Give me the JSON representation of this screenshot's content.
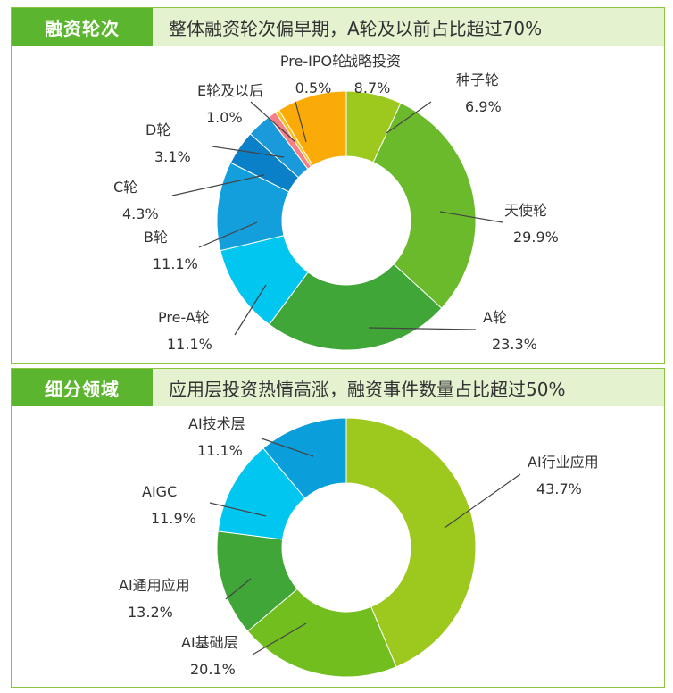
{
  "charts": [
    {
      "tag": "融资轮次",
      "headline": "整体融资轮次偏早期，A轮及以前占比超过70%",
      "chart_data": {
        "type": "pie",
        "title": "",
        "labels": [
          "种子轮",
          "天使轮",
          "A轮",
          "Pre-A轮",
          "B轮",
          "C轮",
          "D轮",
          "E轮及以后",
          "Pre-IPO轮",
          "战略投资"
        ],
        "values": [
          6.9,
          29.9,
          23.3,
          11.1,
          11.1,
          4.3,
          3.1,
          1.0,
          0.5,
          8.7
        ],
        "value_labels": [
          "6.9%",
          "29.9%",
          "23.3%",
          "11.1%",
          "11.1%",
          "4.3%",
          "3.1%",
          "1.0%",
          "0.5%",
          "8.7%"
        ],
        "colors": [
          "#9dc81e",
          "#6bba2c",
          "#3fa637",
          "#00c6f0",
          "#129fdc",
          "#0a80c9",
          "#1a99db",
          "#f77f86",
          "#f4c21a",
          "#fbab07"
        ],
        "legend": "none"
      }
    },
    {
      "tag": "细分领域",
      "headline": "应用层投资热情高涨，融资事件数量占比超过50%",
      "chart_data": {
        "type": "pie",
        "title": "",
        "labels": [
          "AI行业应用",
          "AI基础层",
          "AI通用应用",
          "AIGC",
          "AI技术层"
        ],
        "values": [
          43.7,
          20.1,
          13.2,
          11.9,
          11.1
        ],
        "value_labels": [
          "43.7%",
          "20.1%",
          "13.2%",
          "11.9%",
          "11.1%"
        ],
        "colors": [
          "#9dc81e",
          "#72be1e",
          "#3fa637",
          "#00c6f0",
          "#0a9edb"
        ],
        "legend": "none"
      }
    }
  ]
}
